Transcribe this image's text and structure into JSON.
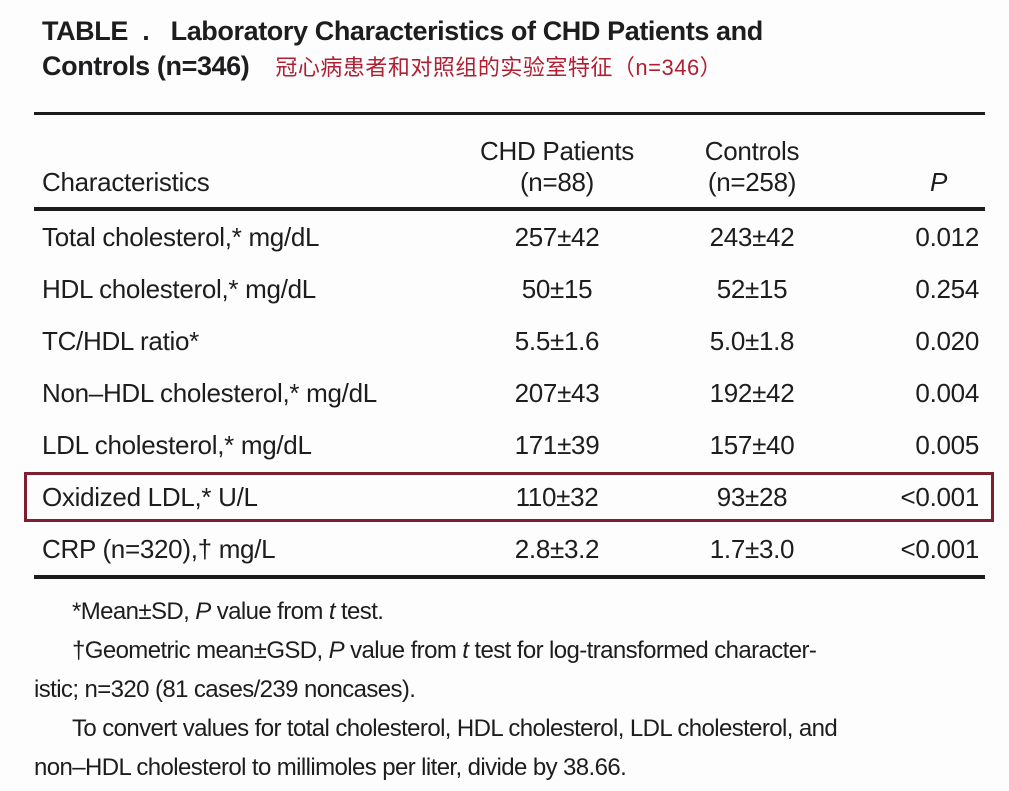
{
  "title": {
    "line1": "TABLE  .   Laboratory Characteristics of CHD Patients and",
    "line2": "Controls (n=346)",
    "subtitle_cn": "冠心病患者和对照组的实验室特征（n=346）"
  },
  "table": {
    "columns": [
      {
        "line1": "",
        "line2": "Characteristics"
      },
      {
        "line1": "CHD Patients",
        "line2": "(n=88)"
      },
      {
        "line1": "Controls",
        "line2": "(n=258)"
      },
      {
        "line1": "",
        "line2": "P"
      }
    ],
    "rows": [
      {
        "characteristic": "Total cholesterol,* mg/dL",
        "chd": "257±42",
        "controls": "243±42",
        "p": "0.012",
        "highlighted": false
      },
      {
        "characteristic": "HDL cholesterol,* mg/dL",
        "chd": "50±15",
        "controls": "52±15",
        "p": "0.254",
        "highlighted": false
      },
      {
        "characteristic": "TC/HDL ratio*",
        "chd": "5.5±1.6",
        "controls": "5.0±1.8",
        "p": "0.020",
        "highlighted": false
      },
      {
        "characteristic": "Non–HDL cholesterol,* mg/dL",
        "chd": "207±43",
        "controls": "192±42",
        "p": "0.004",
        "highlighted": false
      },
      {
        "characteristic": "LDL cholesterol,* mg/dL",
        "chd": "171±39",
        "controls": "157±40",
        "p": "0.005",
        "highlighted": false
      },
      {
        "characteristic": "Oxidized LDL,* U/L",
        "chd": "110±32",
        "controls": "93±28",
        "p": "<0.001",
        "highlighted": true
      },
      {
        "characteristic": "CRP (n=320),† mg/L",
        "chd": "2.8±3.2",
        "controls": "1.7±3.0",
        "p": "<0.001",
        "highlighted": false
      }
    ]
  },
  "footnotes": {
    "lines": [
      {
        "indent": true,
        "segments": [
          {
            "t": "*Mean±SD, "
          },
          {
            "t": "P",
            "i": true
          },
          {
            "t": " value from "
          },
          {
            "t": "t",
            "i": true
          },
          {
            "t": " test."
          }
        ]
      },
      {
        "indent": true,
        "segments": [
          {
            "t": "†Geometric mean±GSD, "
          },
          {
            "t": "P",
            "i": true
          },
          {
            "t": " value from "
          },
          {
            "t": "t",
            "i": true
          },
          {
            "t": " test for log-transformed character-"
          }
        ]
      },
      {
        "indent": false,
        "segments": [
          {
            "t": "istic; n=320 (81 cases/239 noncases)."
          }
        ]
      },
      {
        "indent": true,
        "segments": [
          {
            "t": "To convert values for total cholesterol, HDL cholesterol, LDL cholesterol, and"
          }
        ]
      },
      {
        "indent": false,
        "segments": [
          {
            "t": "non–HDL cholesterol to millimoles per liter, divide by 38.66."
          }
        ]
      }
    ]
  },
  "colors": {
    "highlight_box_red": "#7d1f2f",
    "subtitle_red": "#b01e32",
    "text": "#1d1d1f",
    "rule": "#1c1c1c"
  }
}
